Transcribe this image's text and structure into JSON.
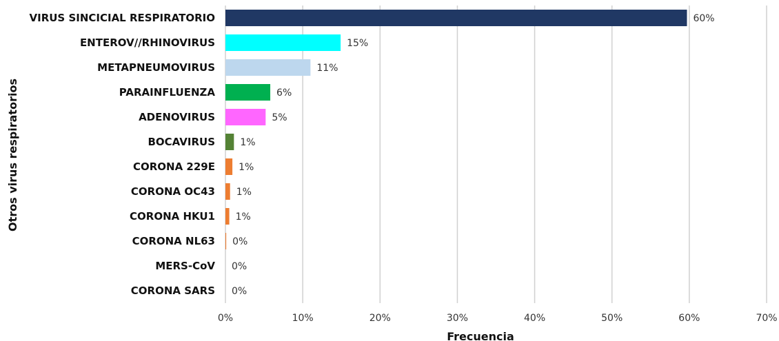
{
  "chart_data": {
    "type": "bar",
    "orientation": "horizontal",
    "categories": [
      "VIRUS SINCICIAL RESPIRATORIO",
      "ENTEROV//RHINOVIRUS",
      "METAPNEUMOVIRUS",
      "PARAINFLUENZA",
      "ADENOVIRUS",
      "BOCAVIRUS",
      "CORONA 229E",
      "CORONA OC43",
      "CORONA HKU1",
      "CORONA NL63",
      "MERS-CoV",
      "CORONA SARS"
    ],
    "values": [
      59.7,
      14.9,
      11.0,
      5.8,
      5.2,
      1.1,
      0.9,
      0.6,
      0.5,
      0.1,
      0.0,
      0.0
    ],
    "data_labels": [
      "60%",
      "15%",
      "11%",
      "6%",
      "5%",
      "1%",
      "1%",
      "1%",
      "1%",
      "0%",
      "0%",
      "0%"
    ],
    "colors": [
      "#203864",
      "#00FFFF",
      "#BDD7EE",
      "#00B050",
      "#FF66FF",
      "#548235",
      "#ED7D31",
      "#ED7D31",
      "#ED7D31",
      "#ED7D31",
      "#ED7D31",
      "#ED7D31"
    ],
    "xlabel": "Frecuencia",
    "ylabel": "Otros virus respiratorios",
    "xlim": [
      0,
      70
    ],
    "xticks": [
      "0%",
      "10%",
      "20%",
      "30%",
      "40%",
      "50%",
      "60%",
      "70%"
    ],
    "grid": "vertical"
  }
}
